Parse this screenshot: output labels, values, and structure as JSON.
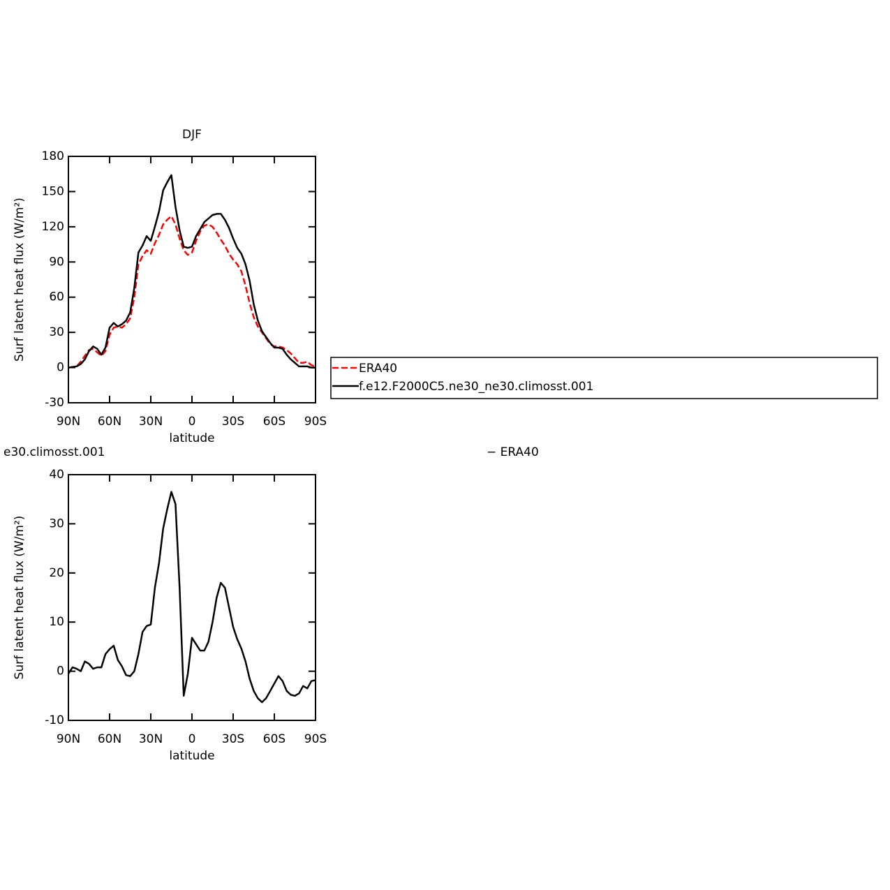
{
  "chart_data": [
    {
      "type": "line",
      "title": "DJF",
      "xlabel": "latitude",
      "ylabel": "Surf latent heat flux (W/m²)",
      "x": [
        90,
        87,
        84,
        81,
        78,
        75,
        72,
        69,
        66,
        63,
        60,
        57,
        54,
        51,
        48,
        45,
        42,
        39,
        36,
        33,
        30,
        27,
        24,
        21,
        18,
        15,
        12,
        9,
        6,
        3,
        0,
        -3,
        -6,
        -9,
        -12,
        -15,
        -18,
        -21,
        -24,
        -27,
        -30,
        -33,
        -36,
        -39,
        -42,
        -45,
        -48,
        -51,
        -54,
        -57,
        -60,
        -63,
        -66,
        -69,
        -72,
        -75,
        -78,
        -81,
        -84,
        -87,
        -90
      ],
      "series": [
        {
          "name": "ERA40",
          "color": "#ff0000",
          "linestyle": "dashed",
          "values": [
            0,
            0.5,
            1,
            5,
            10,
            15,
            16,
            13,
            10,
            14,
            28,
            34,
            35,
            34,
            37,
            42,
            60,
            88,
            95,
            100,
            97,
            106,
            113,
            122,
            126,
            129,
            122,
            110,
            100,
            96,
            98,
            108,
            116,
            121,
            122,
            120,
            115,
            109,
            104,
            97,
            92,
            88,
            82,
            70,
            55,
            43,
            35,
            30,
            25,
            20,
            18,
            18,
            17,
            15,
            12,
            8,
            4,
            4,
            5,
            2,
            1
          ]
        },
        {
          "name": "f.e12.F2000C5.ne30_ne30.climosst.001",
          "color": "#000000",
          "linestyle": "solid",
          "values": [
            0,
            0.5,
            1,
            3,
            7,
            14,
            18,
            16,
            11,
            17,
            34,
            38,
            35,
            37,
            40,
            47,
            68,
            98,
            104,
            112,
            108,
            120,
            133,
            151,
            158,
            164,
            137,
            117,
            103,
            102,
            103,
            112,
            118,
            124,
            127,
            130,
            131,
            131,
            126,
            119,
            110,
            102,
            97,
            88,
            74,
            54,
            40,
            31,
            26,
            21,
            17,
            17,
            16,
            11,
            7,
            4,
            1,
            1,
            1,
            0,
            0
          ]
        }
      ],
      "xlim": [
        90,
        -90
      ],
      "xticks": [
        {
          "value": 90,
          "label": "90N"
        },
        {
          "value": 60,
          "label": "60N"
        },
        {
          "value": 30,
          "label": "30N"
        },
        0,
        {
          "value": -30,
          "label": "30S"
        },
        {
          "value": -60,
          "label": "60S"
        },
        {
          "value": -90,
          "label": "90S"
        }
      ],
      "ylim": [
        -30,
        180
      ],
      "yticks": [
        -30,
        0,
        30,
        60,
        90,
        120,
        150,
        180
      ],
      "legend": "right"
    },
    {
      "type": "line",
      "title_left": "e30.climosst.001",
      "title_right": "− ERA40",
      "xlabel": "latitude",
      "ylabel": "Surf latent heat flux (W/m²)",
      "x": [
        90,
        87,
        84,
        81,
        78,
        75,
        72,
        69,
        66,
        63,
        60,
        57,
        54,
        51,
        48,
        45,
        42,
        39,
        36,
        33,
        30,
        27,
        24,
        21,
        18,
        15,
        12,
        9,
        6,
        3,
        0,
        -3,
        -6,
        -9,
        -12,
        -15,
        -18,
        -21,
        -24,
        -27,
        -30,
        -33,
        -36,
        -39,
        -42,
        -45,
        -48,
        -51,
        -54,
        -57,
        -60,
        -63,
        -66,
        -69,
        -72,
        -75,
        -78,
        -81,
        -84,
        -87,
        -90
      ],
      "values": [
        -0.5,
        0.8,
        0.5,
        0,
        2,
        1.5,
        0.5,
        0.8,
        0.8,
        3.5,
        4.5,
        5.2,
        2.3,
        1,
        -0.8,
        -1,
        0,
        3.5,
        8,
        9.2,
        9.5,
        17,
        22,
        29,
        33,
        36.5,
        34,
        17,
        -5,
        -0.5,
        6.8,
        5.5,
        4.2,
        4.2,
        6,
        10,
        15,
        18,
        17,
        13,
        9,
        6.5,
        4.6,
        2,
        -1.5,
        -4,
        -5.5,
        -6.3,
        -5.5,
        -4,
        -2.5,
        -1,
        -2,
        -4,
        -4.8,
        -5,
        -4.5,
        -3,
        -3.5,
        -2,
        -1.8
      ],
      "color": "#000000",
      "xlim": [
        90,
        -90
      ],
      "xticks": [
        {
          "value": 90,
          "label": "90N"
        },
        {
          "value": 60,
          "label": "60N"
        },
        {
          "value": 30,
          "label": "30N"
        },
        0,
        {
          "value": -30,
          "label": "30S"
        },
        {
          "value": -60,
          "label": "60S"
        },
        {
          "value": -90,
          "label": "90S"
        }
      ],
      "ylim": [
        -10,
        40
      ],
      "yticks": [
        -10,
        0,
        10,
        20,
        30,
        40
      ]
    }
  ]
}
